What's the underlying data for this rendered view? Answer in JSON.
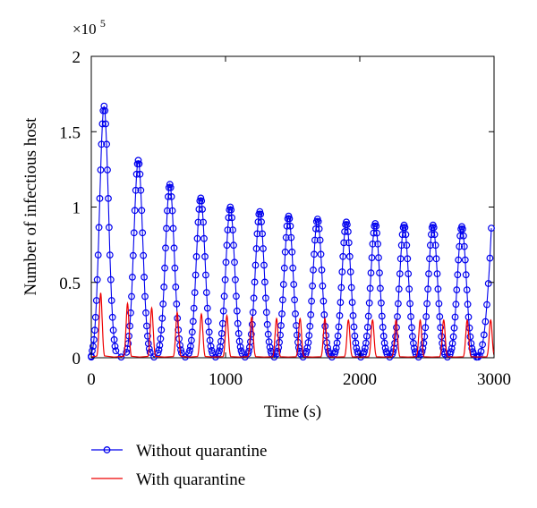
{
  "chart_data": {
    "type": "line",
    "title": "",
    "xlabel": "Time (s)",
    "ylabel": "Number of infectious host",
    "y_multiplier": {
      "base": "×10",
      "exponent": "5"
    },
    "xlim": [
      0,
      3000
    ],
    "ylim": [
      0,
      2
    ],
    "x_ticks": [
      0,
      1000,
      2000,
      3000
    ],
    "y_ticks": [
      0,
      0.5,
      1,
      1.5,
      2
    ],
    "x_tick_labels": [
      "0",
      "1000",
      "2000",
      "3000"
    ],
    "y_tick_labels": [
      "0",
      "0.5",
      "1",
      "1.5",
      "2"
    ],
    "grid": false,
    "legend_position": "below-left",
    "colors": {
      "without": "#0000ee",
      "with": "#ee0000"
    },
    "series": [
      {
        "name": "Without quarantine",
        "style": "line-circle",
        "peaks": [
          {
            "t": 95,
            "v": 1.67
          },
          {
            "t": 350,
            "v": 1.31
          },
          {
            "t": 585,
            "v": 1.15
          },
          {
            "t": 815,
            "v": 1.06
          },
          {
            "t": 1035,
            "v": 1.0
          },
          {
            "t": 1255,
            "v": 0.97
          },
          {
            "t": 1470,
            "v": 0.94
          },
          {
            "t": 1685,
            "v": 0.92
          },
          {
            "t": 1900,
            "v": 0.9
          },
          {
            "t": 2115,
            "v": 0.89
          },
          {
            "t": 2330,
            "v": 0.88
          },
          {
            "t": 2545,
            "v": 0.88
          },
          {
            "t": 2760,
            "v": 0.87
          }
        ],
        "end_value": 0.86
      },
      {
        "name": "With quarantine",
        "style": "line",
        "peaks": [
          {
            "t": 70,
            "v": 0.43
          },
          {
            "t": 270,
            "v": 0.36
          },
          {
            "t": 450,
            "v": 0.33
          },
          {
            "t": 640,
            "v": 0.3
          },
          {
            "t": 820,
            "v": 0.29
          },
          {
            "t": 1010,
            "v": 0.28
          },
          {
            "t": 1195,
            "v": 0.27
          },
          {
            "t": 1380,
            "v": 0.26
          },
          {
            "t": 1555,
            "v": 0.26
          },
          {
            "t": 1740,
            "v": 0.26
          },
          {
            "t": 1915,
            "v": 0.25
          },
          {
            "t": 2095,
            "v": 0.25
          },
          {
            "t": 2270,
            "v": 0.25
          },
          {
            "t": 2450,
            "v": 0.25
          },
          {
            "t": 2625,
            "v": 0.25
          },
          {
            "t": 2800,
            "v": 0.25
          },
          {
            "t": 2975,
            "v": 0.25
          }
        ]
      }
    ]
  }
}
